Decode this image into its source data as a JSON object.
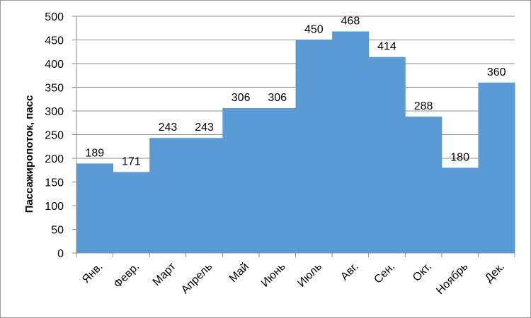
{
  "chart_data": {
    "type": "bar",
    "categories": [
      "Янв.",
      "Февр.",
      "Март",
      "Апрель",
      "Май",
      "Июнь",
      "Июль",
      "Авг.",
      "Сен.",
      "Окт.",
      "Ноябрь",
      "Дек."
    ],
    "values": [
      189,
      171,
      243,
      243,
      306,
      306,
      450,
      468,
      414,
      288,
      180,
      360
    ],
    "ylabel": "Пассажиропоток, пасс",
    "ylim": [
      0,
      500
    ],
    "yticks": [
      0,
      50,
      100,
      150,
      200,
      250,
      300,
      350,
      400,
      450,
      500
    ],
    "grid": true,
    "bar_color": "#5b9bd5",
    "gridline_color": "#8c8c8c",
    "data_labels": true
  }
}
